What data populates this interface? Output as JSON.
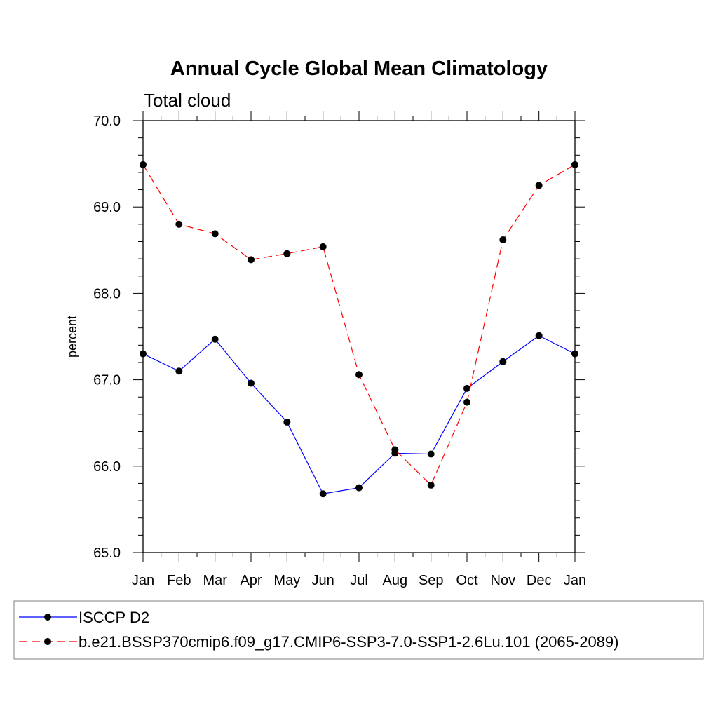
{
  "chart_data": {
    "type": "line",
    "title": "Annual Cycle Global Mean Climatology",
    "subtitle": "Total cloud",
    "xlabel": "",
    "ylabel": "percent",
    "categories": [
      "Jan",
      "Feb",
      "Mar",
      "Apr",
      "May",
      "Jun",
      "Jul",
      "Aug",
      "Sep",
      "Oct",
      "Nov",
      "Dec",
      "Jan"
    ],
    "ylim": [
      65.0,
      70.0
    ],
    "yticks": [
      "65.0",
      "66.0",
      "67.0",
      "68.0",
      "69.0",
      "70.0"
    ],
    "ytick_values": [
      65,
      66,
      67,
      68,
      69,
      70
    ],
    "grid": false,
    "legend_position": "bottom",
    "series": [
      {
        "name": "ISCCP D2",
        "color": "#0000ff",
        "dash": "solid",
        "values": [
          67.3,
          67.1,
          67.47,
          66.96,
          66.51,
          65.68,
          65.75,
          66.15,
          66.14,
          66.9,
          67.21,
          67.51,
          67.3
        ]
      },
      {
        "name": "b.e21.BSSP370cmip6.f09_g17.CMIP6-SSP3-7.0-SSP1-2.6Lu.101 (2065-2089)",
        "color": "#ff0000",
        "dash": "dashed",
        "values": [
          69.49,
          68.8,
          68.69,
          68.39,
          68.46,
          68.54,
          67.06,
          66.19,
          65.78,
          66.74,
          68.62,
          69.25,
          69.49
        ]
      }
    ]
  }
}
